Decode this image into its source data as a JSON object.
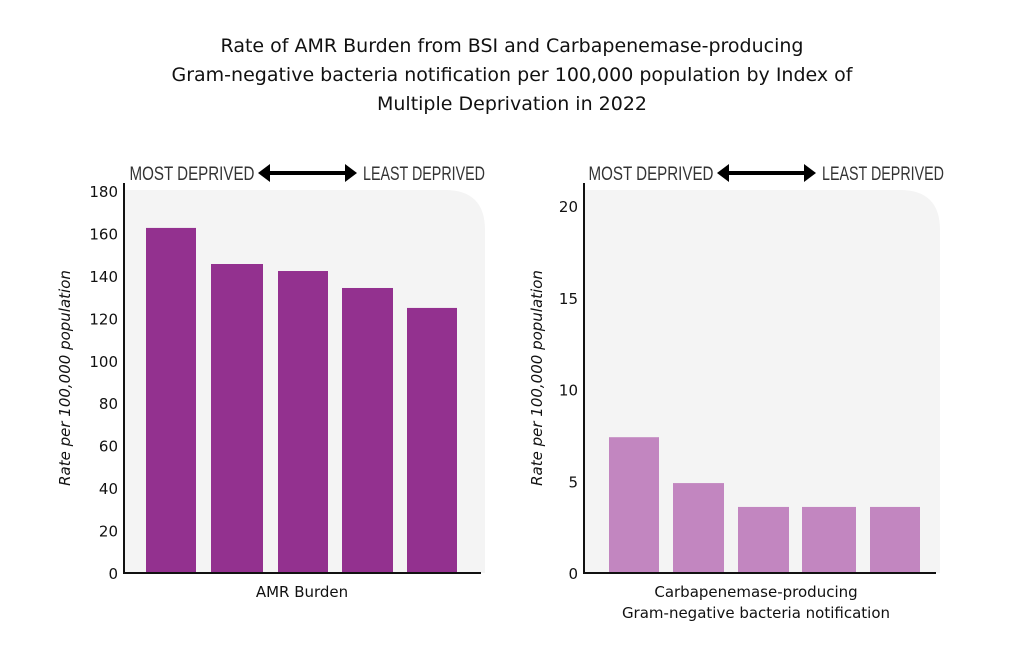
{
  "chart_data": [
    {
      "type": "bar",
      "title": "Rate of AMR Burden from BSI and Carbapenemase-producing Gram-negative bacteria notification per 100,000 population by Index of Multiple Deprivation in 2022",
      "title_lines": [
        "Rate of AMR Burden from BSI and Carbapenemase-producing",
        "Gram-negative bacteria notification per 100,000 population by Index of",
        "Multiple Deprivation in 2022"
      ],
      "xlabel_lines": [
        "AMR Burden"
      ],
      "ylabel": "Rate per 100,000 population",
      "ylim": [
        0,
        180
      ],
      "yticks": [
        0,
        20,
        40,
        60,
        80,
        100,
        120,
        140,
        160,
        180
      ],
      "values": [
        162.6,
        145.6,
        142.3,
        134.3,
        124.9
      ],
      "color": "#93318f",
      "annotation": {
        "left": "MOST DEPRIVED",
        "right": "LEAST DEPRIVED"
      },
      "grid": false
    },
    {
      "type": "bar",
      "xlabel_lines": [
        "Carbapenemase-producing",
        "Gram-negative bacteria notification"
      ],
      "ylabel": "Rate per 100,000 population",
      "ylim": [
        0,
        20
      ],
      "yticks": [
        0,
        5,
        10,
        15,
        20
      ],
      "values": [
        7.4,
        4.9,
        3.6,
        3.6,
        3.6
      ],
      "color": "#c286c0",
      "annotation": {
        "left": "MOST DEPRIVED",
        "right": "LEAST DEPRIVED"
      },
      "grid": false
    }
  ]
}
